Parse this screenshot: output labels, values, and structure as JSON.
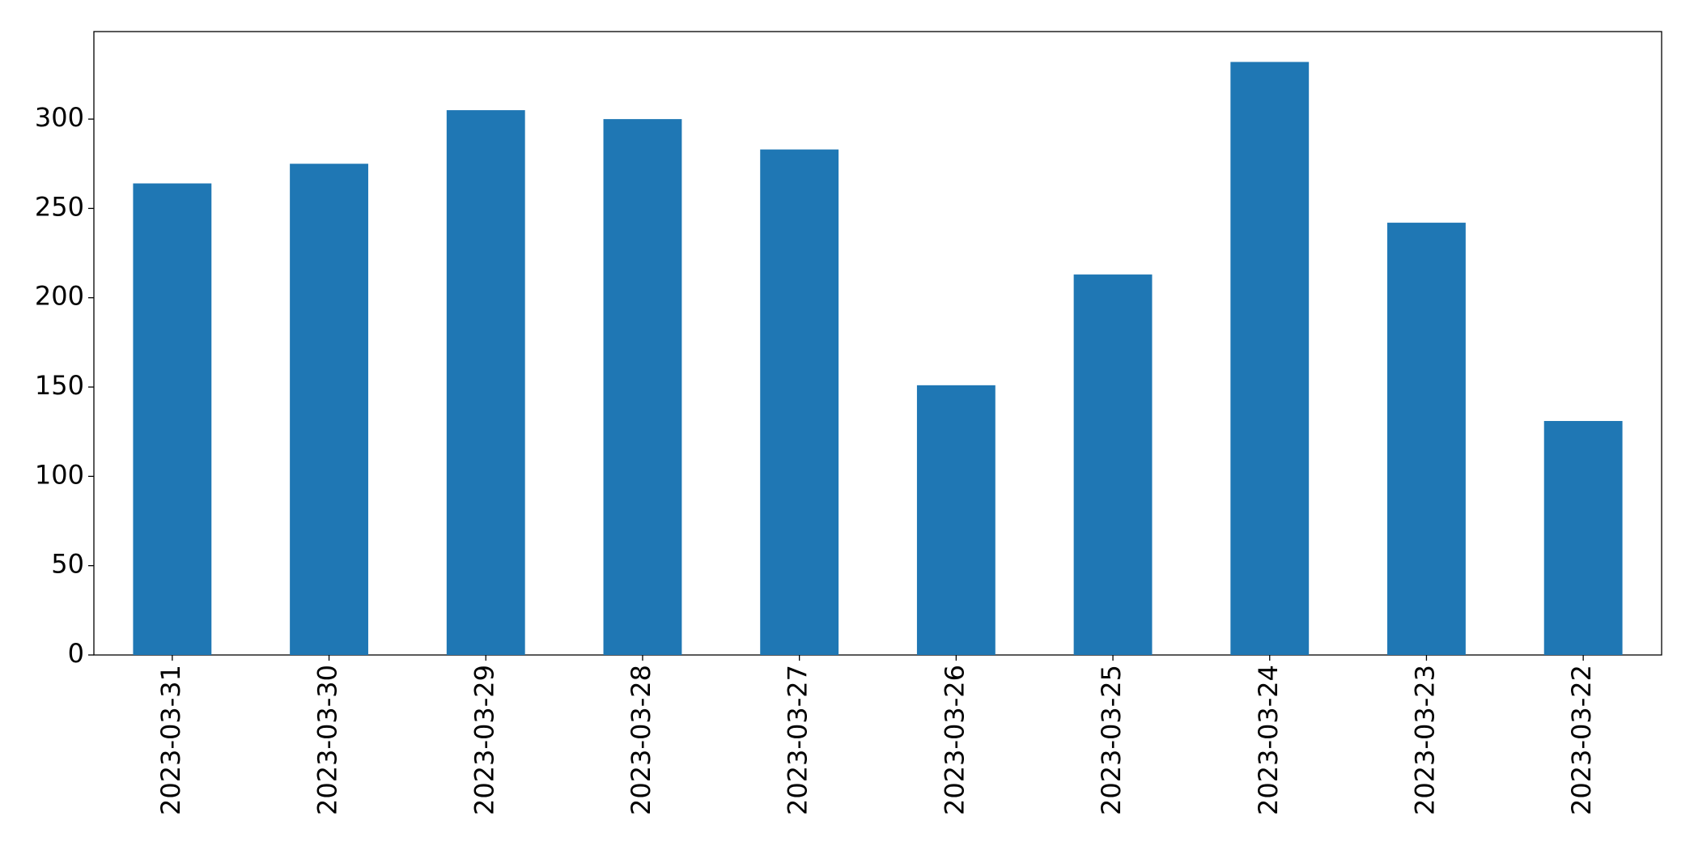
{
  "chart_data": {
    "type": "bar",
    "categories": [
      "2023-03-31",
      "2023-03-30",
      "2023-03-29",
      "2023-03-28",
      "2023-03-27",
      "2023-03-26",
      "2023-03-25",
      "2023-03-24",
      "2023-03-23",
      "2023-03-22"
    ],
    "values": [
      264,
      275,
      305,
      300,
      283,
      151,
      213,
      332,
      242,
      131
    ],
    "color": "#1f77b4",
    "ylim": [
      0,
      349
    ],
    "yticks": [
      0,
      50,
      100,
      150,
      200,
      250,
      300
    ],
    "grid": false
  }
}
